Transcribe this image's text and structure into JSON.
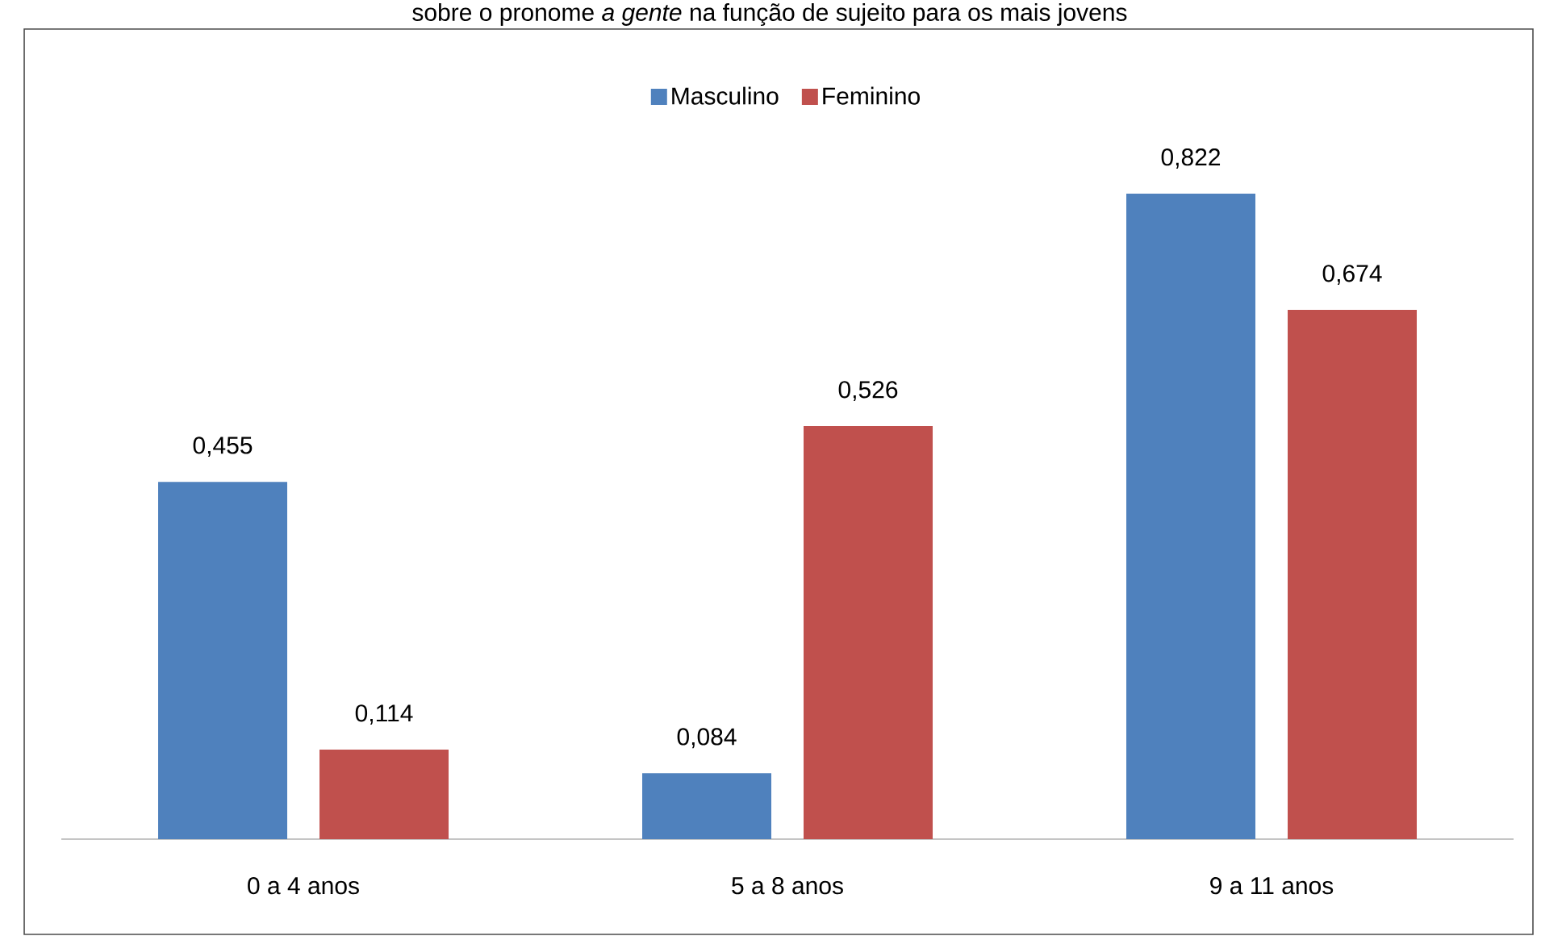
{
  "chart_data": {
    "type": "bar",
    "title": "sobre o pronome *a gente* na função de sujeito para os mais jovens",
    "categories": [
      "0 a 4 anos",
      "5 a 8 anos",
      "9 a 11 anos"
    ],
    "series": [
      {
        "name": "Masculino",
        "color": "#4f81bd",
        "values": [
          0.455,
          0.084,
          0.822
        ],
        "value_labels": [
          "0,455",
          "0,084",
          "0,822"
        ]
      },
      {
        "name": "Feminino",
        "color": "#c0504d",
        "values": [
          0.114,
          0.526,
          0.674
        ],
        "value_labels": [
          "0,114",
          "0,526",
          "0,674"
        ]
      }
    ],
    "legend": "top",
    "tick_labels": "x"
  }
}
